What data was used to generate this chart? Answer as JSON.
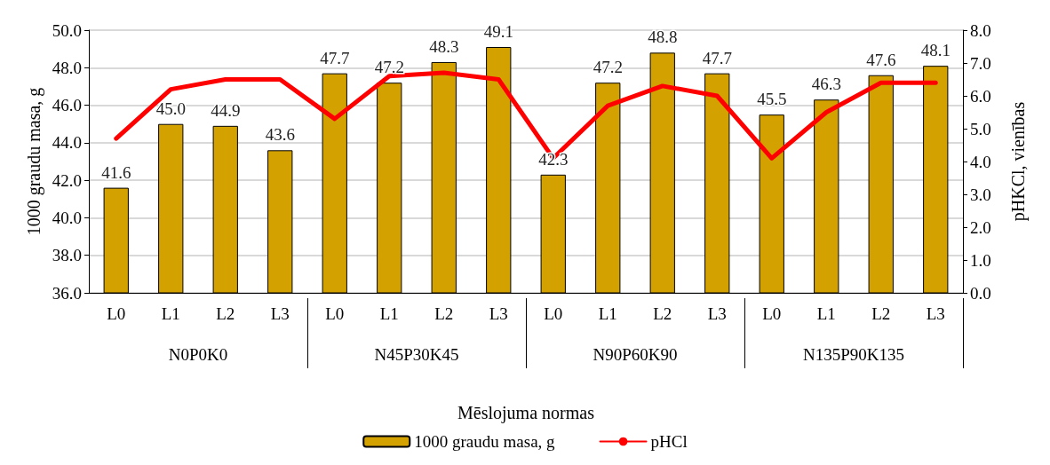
{
  "chart_data": {
    "type": "bar",
    "xlabel": "Mēslojuma normas",
    "ylabel": "1000 graudu masa, g",
    "y2label": "pHKCl, vienības",
    "categories": [
      "L0",
      "L1",
      "L2",
      "L3",
      "L0",
      "L1",
      "L2",
      "L3",
      "L0",
      "L1",
      "L2",
      "L3",
      "L0",
      "L1",
      "L2",
      "L3"
    ],
    "annotations": [
      "N0P0K0",
      "N45P30K45",
      "N90P60K90",
      "N135P90K135"
    ],
    "series": [
      {
        "name": "1000 graudu masa, g",
        "color": "#d4a200",
        "values": [
          41.6,
          45.0,
          44.9,
          43.6,
          47.7,
          47.2,
          48.3,
          49.1,
          42.3,
          47.2,
          48.8,
          47.7,
          45.5,
          46.3,
          47.6,
          48.1
        ],
        "value_labels": [
          "41.6",
          "45.0",
          "44.9",
          "43.6",
          "47.7",
          "47.2",
          "48.3",
          "49.1",
          "42.3",
          "47.2",
          "48.8",
          "47.7",
          "45.5",
          "46.3",
          "47.6",
          "48.1"
        ]
      },
      {
        "name": "pHCl",
        "type": "line",
        "axis": "y2",
        "color": "#ff0000",
        "values": [
          4.7,
          6.2,
          6.5,
          6.5,
          5.3,
          6.6,
          6.7,
          6.5,
          4.1,
          5.7,
          6.3,
          6.0,
          4.1,
          5.5,
          6.4,
          6.4
        ]
      }
    ],
    "ylim": [
      36,
      50
    ],
    "yticks": [
      {
        "value": 36,
        "label": "36.0"
      },
      {
        "value": 38,
        "label": "38.0"
      },
      {
        "value": 40,
        "label": "40.0"
      },
      {
        "value": 42,
        "label": "42.0"
      },
      {
        "value": 44,
        "label": "44.0"
      },
      {
        "value": 46,
        "label": "46.0"
      },
      {
        "value": 48,
        "label": "48.0"
      },
      {
        "value": 50,
        "label": "50.0"
      }
    ],
    "y2lim": [
      0,
      8
    ],
    "y2ticks": [
      {
        "value": 0,
        "label": "0.0"
      },
      {
        "value": 1,
        "label": "1.0"
      },
      {
        "value": 2,
        "label": "2.0"
      },
      {
        "value": 3,
        "label": "3.0"
      },
      {
        "value": 4,
        "label": "4.0"
      },
      {
        "value": 5,
        "label": "5.0"
      },
      {
        "value": 6,
        "label": "6.0"
      },
      {
        "value": 7,
        "label": "7.0"
      },
      {
        "value": 8,
        "label": "8.0"
      }
    ],
    "grid": "y",
    "legend": "bottom",
    "marker": "none",
    "line_style": "solid"
  }
}
